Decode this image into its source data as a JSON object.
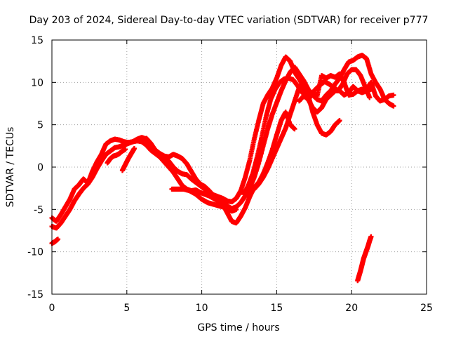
{
  "chart_data": {
    "type": "scatter",
    "title": "Day 203 of 2024, Sidereal Day-to-day VTEC variation (SDTVAR) for receiver p777",
    "xlabel": "GPS time / hours",
    "ylabel": "SDTVAR / TECUs",
    "xlim": [
      0,
      25
    ],
    "ylim": [
      -15,
      15
    ],
    "x_ticks": [
      0,
      5,
      10,
      15,
      20,
      25
    ],
    "y_ticks": [
      -15,
      -10,
      -5,
      0,
      5,
      10,
      15
    ],
    "x_tick_labels": [
      "0",
      "5",
      "10",
      "15",
      "20",
      "25"
    ],
    "y_tick_labels": [
      "-15",
      "-10",
      "-5",
      "0",
      "5",
      "10",
      "15"
    ],
    "grid": true,
    "marker": "+",
    "colors": {
      "series": "#ff0000",
      "axis": "#000000",
      "grid": "#a0a0a0"
    },
    "series": [
      {
        "points": [
          [
            0.0,
            -6.0
          ],
          [
            0.3,
            -6.4
          ],
          [
            0.6,
            -5.6
          ],
          [
            0.9,
            -4.7
          ],
          [
            1.2,
            -3.8
          ],
          [
            1.5,
            -2.6
          ],
          [
            1.8,
            -2.1
          ],
          [
            2.1,
            -1.4
          ],
          [
            2.4,
            -1.9
          ],
          [
            2.7,
            -0.5
          ],
          [
            3.0,
            0.6
          ],
          [
            3.3,
            1.5
          ],
          [
            3.6,
            2.7
          ],
          [
            3.9,
            3.1
          ],
          [
            4.2,
            3.3
          ],
          [
            4.5,
            3.2
          ],
          [
            4.8,
            3.0
          ],
          [
            5.1,
            2.9
          ],
          [
            5.4,
            3.0
          ],
          [
            5.7,
            3.3
          ],
          [
            6.0,
            3.5
          ],
          [
            6.3,
            3.3
          ],
          [
            6.6,
            2.6
          ],
          [
            6.9,
            2.0
          ],
          [
            7.2,
            1.5
          ],
          [
            7.5,
            1.1
          ],
          [
            7.8,
            0.7
          ],
          [
            8.1,
            0.0
          ],
          [
            8.4,
            -0.5
          ],
          [
            8.7,
            -0.8
          ],
          [
            9.0,
            -0.9
          ],
          [
            9.3,
            -1.4
          ],
          [
            9.6,
            -1.8
          ],
          [
            9.9,
            -2.2
          ],
          [
            10.2,
            -2.6
          ],
          [
            10.5,
            -3.0
          ],
          [
            10.8,
            -3.3
          ],
          [
            11.1,
            -3.5
          ],
          [
            11.4,
            -3.7
          ],
          [
            11.7,
            -4.0
          ],
          [
            12.0,
            -4.1
          ],
          [
            12.3,
            -3.7
          ],
          [
            12.6,
            -2.8
          ],
          [
            12.9,
            -1.2
          ],
          [
            13.2,
            0.8
          ],
          [
            13.5,
            3.3
          ],
          [
            13.8,
            5.5
          ],
          [
            14.1,
            7.5
          ],
          [
            14.4,
            8.5
          ],
          [
            14.7,
            9.3
          ],
          [
            15.0,
            10.5
          ],
          [
            15.3,
            12.0
          ],
          [
            15.6,
            13.0
          ],
          [
            15.9,
            12.5
          ],
          [
            16.2,
            11.2
          ],
          [
            16.5,
            10.4
          ],
          [
            16.8,
            9.5
          ],
          [
            17.1,
            8.0
          ],
          [
            17.4,
            7.0
          ],
          [
            17.7,
            6.5
          ],
          [
            18.0,
            7.0
          ],
          [
            18.3,
            8.0
          ],
          [
            18.6,
            8.5
          ],
          [
            18.9,
            9.0
          ],
          [
            19.2,
            9.0
          ],
          [
            19.5,
            8.5
          ],
          [
            19.8,
            8.8
          ],
          [
            20.1,
            9.5
          ],
          [
            20.4,
            9.0
          ],
          [
            20.7,
            8.8
          ],
          [
            21.0,
            9.0
          ],
          [
            21.3,
            9.2
          ]
        ]
      },
      {
        "points": [
          [
            0.0,
            -7.0
          ],
          [
            0.3,
            -7.2
          ],
          [
            0.6,
            -6.6
          ],
          [
            0.9,
            -5.8
          ],
          [
            1.2,
            -5.0
          ],
          [
            1.5,
            -4.0
          ],
          [
            1.8,
            -3.2
          ],
          [
            2.1,
            -2.5
          ],
          [
            2.4,
            -2.0
          ],
          [
            2.7,
            -1.2
          ],
          [
            3.0,
            -0.2
          ],
          [
            3.3,
            0.7
          ],
          [
            3.6,
            1.5
          ],
          [
            3.9,
            1.9
          ],
          [
            4.2,
            2.3
          ],
          [
            4.5,
            2.4
          ],
          [
            4.8,
            2.6
          ],
          [
            5.1,
            2.8
          ],
          [
            5.4,
            3.0
          ],
          [
            5.7,
            3.1
          ],
          [
            6.0,
            3.0
          ],
          [
            6.3,
            2.6
          ],
          [
            6.6,
            2.0
          ],
          [
            6.9,
            1.6
          ],
          [
            7.2,
            1.2
          ],
          [
            7.5,
            0.6
          ],
          [
            7.8,
            0.0
          ],
          [
            8.1,
            -0.6
          ],
          [
            8.4,
            -1.4
          ],
          [
            8.7,
            -2.2
          ],
          [
            9.0,
            -2.6
          ],
          [
            9.3,
            -2.8
          ],
          [
            9.6,
            -2.7
          ],
          [
            9.9,
            -3.0
          ],
          [
            10.2,
            -3.2
          ],
          [
            10.5,
            -3.4
          ],
          [
            10.8,
            -3.7
          ],
          [
            11.1,
            -4.0
          ],
          [
            11.4,
            -4.2
          ],
          [
            11.7,
            -4.6
          ],
          [
            12.0,
            -4.9
          ],
          [
            12.3,
            -4.7
          ],
          [
            12.6,
            -4.2
          ],
          [
            12.9,
            -3.4
          ],
          [
            13.2,
            -2.5
          ],
          [
            13.5,
            -1.2
          ],
          [
            13.8,
            0.5
          ],
          [
            14.1,
            2.5
          ],
          [
            14.4,
            4.5
          ],
          [
            14.7,
            6.2
          ],
          [
            15.0,
            7.6
          ],
          [
            15.3,
            9.0
          ],
          [
            15.6,
            10.2
          ],
          [
            15.9,
            11.2
          ],
          [
            16.2,
            11.8
          ],
          [
            16.5,
            11.0
          ],
          [
            16.8,
            10.2
          ],
          [
            17.1,
            9.2
          ],
          [
            17.4,
            8.5
          ],
          [
            17.7,
            8.0
          ],
          [
            18.0,
            7.8
          ],
          [
            18.3,
            8.5
          ],
          [
            18.6,
            9.0
          ],
          [
            18.9,
            9.8
          ],
          [
            19.2,
            10.5
          ],
          [
            19.5,
            11.5
          ],
          [
            19.8,
            12.4
          ],
          [
            20.1,
            12.6
          ],
          [
            20.4,
            13.0
          ],
          [
            20.7,
            13.2
          ],
          [
            21.0,
            12.8
          ],
          [
            21.3,
            11.0
          ],
          [
            21.6,
            10.0
          ],
          [
            21.9,
            9.2
          ],
          [
            22.2,
            8.0
          ],
          [
            22.5,
            7.5
          ],
          [
            22.8,
            7.2
          ]
        ]
      },
      {
        "points": [
          [
            6.3,
            3.4
          ],
          [
            6.6,
            2.8
          ],
          [
            6.9,
            2.0
          ],
          [
            7.2,
            1.6
          ],
          [
            7.5,
            1.3
          ],
          [
            7.8,
            1.2
          ],
          [
            8.1,
            1.5
          ],
          [
            8.4,
            1.3
          ],
          [
            8.7,
            1.0
          ],
          [
            9.0,
            0.4
          ],
          [
            9.3,
            -0.5
          ],
          [
            9.6,
            -1.4
          ],
          [
            9.9,
            -2.0
          ],
          [
            10.2,
            -2.3
          ],
          [
            10.5,
            -2.8
          ],
          [
            10.8,
            -3.4
          ],
          [
            11.1,
            -3.8
          ],
          [
            11.4,
            -4.4
          ],
          [
            11.7,
            -5.4
          ],
          [
            12.0,
            -6.4
          ],
          [
            12.3,
            -6.6
          ],
          [
            12.6,
            -5.8
          ],
          [
            12.9,
            -4.8
          ],
          [
            13.2,
            -3.5
          ],
          [
            13.5,
            -2.4
          ],
          [
            13.8,
            -1.8
          ],
          [
            14.1,
            -0.8
          ],
          [
            14.4,
            0.5
          ],
          [
            14.7,
            2.0
          ],
          [
            15.0,
            3.8
          ],
          [
            15.3,
            5.5
          ],
          [
            15.6,
            6.5
          ],
          [
            15.9,
            5.0
          ],
          [
            16.2,
            4.5
          ]
        ]
      },
      {
        "points": [
          [
            8.0,
            -2.6
          ],
          [
            8.4,
            -2.6
          ],
          [
            8.8,
            -2.6
          ],
          [
            9.2,
            -2.8
          ],
          [
            9.6,
            -3.2
          ],
          [
            10.0,
            -3.8
          ],
          [
            10.4,
            -4.2
          ],
          [
            10.8,
            -4.4
          ],
          [
            11.2,
            -4.6
          ],
          [
            11.6,
            -4.8
          ],
          [
            12.0,
            -5.2
          ],
          [
            12.3,
            -5.0
          ]
        ]
      },
      {
        "points": [
          [
            12.8,
            -3.2
          ],
          [
            13.1,
            -2.2
          ],
          [
            13.4,
            -0.8
          ],
          [
            13.7,
            1.2
          ],
          [
            14.0,
            3.5
          ],
          [
            14.3,
            6.0
          ],
          [
            14.6,
            8.0
          ],
          [
            14.9,
            9.2
          ],
          [
            15.2,
            10.0
          ],
          [
            15.5,
            10.4
          ],
          [
            15.8,
            10.5
          ],
          [
            16.1,
            10.3
          ],
          [
            16.4,
            9.6
          ],
          [
            16.7,
            8.8
          ],
          [
            17.0,
            8.4
          ],
          [
            17.3,
            8.6
          ],
          [
            17.6,
            9.2
          ],
          [
            17.9,
            9.7
          ],
          [
            18.2,
            10.1
          ],
          [
            18.5,
            9.8
          ],
          [
            18.8,
            9.4
          ],
          [
            19.1,
            9.0
          ],
          [
            19.4,
            9.8
          ],
          [
            19.7,
            11.0
          ],
          [
            20.0,
            11.5
          ],
          [
            20.3,
            11.5
          ],
          [
            20.6,
            10.8
          ],
          [
            20.9,
            9.5
          ],
          [
            21.2,
            8.2
          ]
        ]
      },
      {
        "points": [
          [
            13.5,
            -2.6
          ],
          [
            13.8,
            -2.0
          ],
          [
            14.1,
            -1.2
          ],
          [
            14.4,
            -0.2
          ],
          [
            14.7,
            1.0
          ],
          [
            15.0,
            2.2
          ],
          [
            15.3,
            3.4
          ],
          [
            15.6,
            4.6
          ],
          [
            15.9,
            6.2
          ],
          [
            16.2,
            7.8
          ],
          [
            16.5,
            9.4
          ],
          [
            16.8,
            10.2
          ],
          [
            17.1,
            8.5
          ],
          [
            17.4,
            6.5
          ],
          [
            17.7,
            5.0
          ],
          [
            18.0,
            4.0
          ],
          [
            18.3,
            3.8
          ],
          [
            18.6,
            4.2
          ],
          [
            18.9,
            5.0
          ],
          [
            19.2,
            5.5
          ]
        ]
      },
      {
        "points": [
          [
            16.5,
            7.8
          ],
          [
            16.8,
            8.4
          ],
          [
            17.1,
            8.0
          ],
          [
            17.4,
            8.6
          ],
          [
            17.7,
            8.4
          ],
          [
            18.0,
            10.8
          ],
          [
            18.3,
            10.5
          ],
          [
            18.6,
            10.8
          ],
          [
            18.9,
            10.6
          ],
          [
            19.2,
            11.0
          ],
          [
            19.5,
            10.0
          ],
          [
            19.8,
            8.5
          ],
          [
            20.1,
            8.6
          ],
          [
            20.4,
            9.0
          ],
          [
            20.7,
            9.2
          ],
          [
            21.0,
            9.2
          ],
          [
            21.3,
            10.0
          ],
          [
            21.6,
            8.4
          ],
          [
            21.9,
            7.8
          ],
          [
            22.2,
            8.0
          ],
          [
            22.5,
            8.4
          ],
          [
            22.8,
            8.5
          ]
        ]
      },
      {
        "points": [
          [
            3.7,
            0.5
          ],
          [
            3.9,
            1.0
          ],
          [
            4.1,
            1.3
          ],
          [
            4.3,
            1.4
          ],
          [
            4.5,
            1.6
          ],
          [
            4.7,
            1.9
          ],
          [
            4.9,
            2.1
          ]
        ]
      },
      {
        "points": [
          [
            4.7,
            -0.4
          ],
          [
            4.9,
            0.3
          ],
          [
            5.1,
            1.0
          ],
          [
            5.3,
            1.6
          ],
          [
            5.5,
            2.2
          ]
        ]
      },
      {
        "points": [
          [
            0.0,
            -9.0
          ],
          [
            0.2,
            -8.8
          ],
          [
            0.4,
            -8.5
          ]
        ]
      },
      {
        "points": [
          [
            20.4,
            -13.4
          ],
          [
            20.5,
            -12.8
          ],
          [
            20.6,
            -12.2
          ],
          [
            20.7,
            -11.5
          ],
          [
            20.8,
            -10.8
          ],
          [
            20.9,
            -10.3
          ],
          [
            21.0,
            -9.8
          ],
          [
            21.1,
            -9.3
          ],
          [
            21.2,
            -8.7
          ],
          [
            21.3,
            -8.2
          ]
        ]
      }
    ]
  }
}
